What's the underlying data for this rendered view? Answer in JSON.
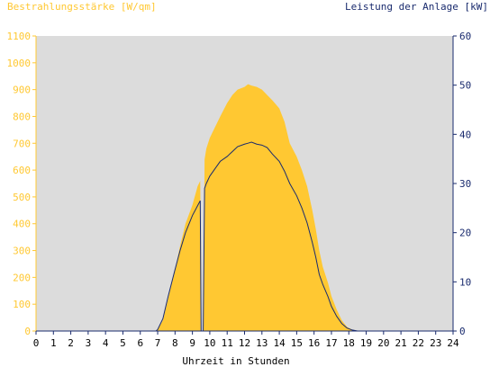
{
  "chart_data": {
    "type": "area",
    "left_axis_title": "Bestrahlungsstärke [W/qm]",
    "right_axis_title": "Leistung der Anlage [kW]",
    "xlabel": "Uhrzeit in Stunden",
    "xlim": [
      0,
      24
    ],
    "ylim_left": [
      0,
      1100
    ],
    "ylim_right": [
      0,
      60
    ],
    "x_ticks": [
      "0",
      "1",
      "2",
      "3",
      "4",
      "5",
      "6",
      "7",
      "8",
      "9",
      "10",
      "11",
      "12",
      "13",
      "14",
      "15",
      "16",
      "17",
      "18",
      "19",
      "20",
      "21",
      "22",
      "23",
      "24"
    ],
    "y_ticks_left": [
      "0",
      "100",
      "200",
      "300",
      "400",
      "500",
      "600",
      "700",
      "800",
      "900",
      "1000",
      "1100"
    ],
    "y_ticks_right": [
      "0",
      "10",
      "20",
      "30",
      "40",
      "50",
      "60"
    ],
    "grid": false,
    "series": [
      {
        "axis": "left",
        "kind": "area",
        "color": "#ffc832",
        "x": [
          0,
          6.9,
          7.0,
          7.3,
          7.6,
          8.0,
          8.3,
          8.6,
          9.0,
          9.3,
          9.45,
          9.5,
          9.62,
          9.7,
          9.8,
          10.0,
          10.3,
          10.6,
          11.0,
          11.3,
          11.6,
          12.0,
          12.2,
          12.4,
          12.7,
          13.0,
          13.3,
          13.6,
          14.0,
          14.3,
          14.6,
          15.0,
          15.3,
          15.6,
          15.9,
          16.1,
          16.3,
          16.5,
          16.8,
          17.0,
          17.3,
          17.6,
          17.9,
          18.2,
          18.5,
          19.0,
          24
        ],
        "y": [
          0,
          0,
          5,
          40,
          120,
          230,
          320,
          400,
          470,
          540,
          560,
          0,
          0,
          640,
          680,
          720,
          760,
          800,
          850,
          880,
          900,
          910,
          920,
          915,
          910,
          900,
          880,
          860,
          830,
          780,
          700,
          650,
          600,
          540,
          450,
          380,
          300,
          240,
          180,
          130,
          80,
          40,
          15,
          5,
          0,
          0,
          0
        ]
      },
      {
        "axis": "right",
        "kind": "line",
        "color": "#1a2b6e",
        "x": [
          0,
          6.9,
          7.0,
          7.3,
          7.6,
          8.0,
          8.3,
          8.6,
          9.0,
          9.3,
          9.45,
          9.5,
          9.62,
          9.7,
          9.8,
          10.0,
          10.3,
          10.6,
          11.0,
          11.3,
          11.6,
          12.0,
          12.2,
          12.4,
          12.7,
          13.0,
          13.3,
          13.6,
          14.0,
          14.3,
          14.6,
          15.0,
          15.3,
          15.6,
          15.9,
          16.1,
          16.3,
          16.5,
          16.8,
          17.0,
          17.3,
          17.6,
          17.9,
          18.2,
          18.5,
          19.0,
          24
        ],
        "y": [
          0,
          0,
          0.3,
          2.5,
          7,
          12.5,
          16.5,
          20,
          23.5,
          25.5,
          26.5,
          0,
          0,
          29,
          30,
          31.5,
          33,
          34.5,
          35.5,
          36.5,
          37.5,
          38,
          38.2,
          38.4,
          38,
          37.8,
          37.3,
          36,
          34.5,
          32.5,
          30,
          27.5,
          25,
          22,
          18,
          15,
          11.5,
          9.5,
          7,
          5,
          3,
          1.5,
          0.6,
          0.2,
          0,
          0,
          0
        ]
      }
    ]
  }
}
